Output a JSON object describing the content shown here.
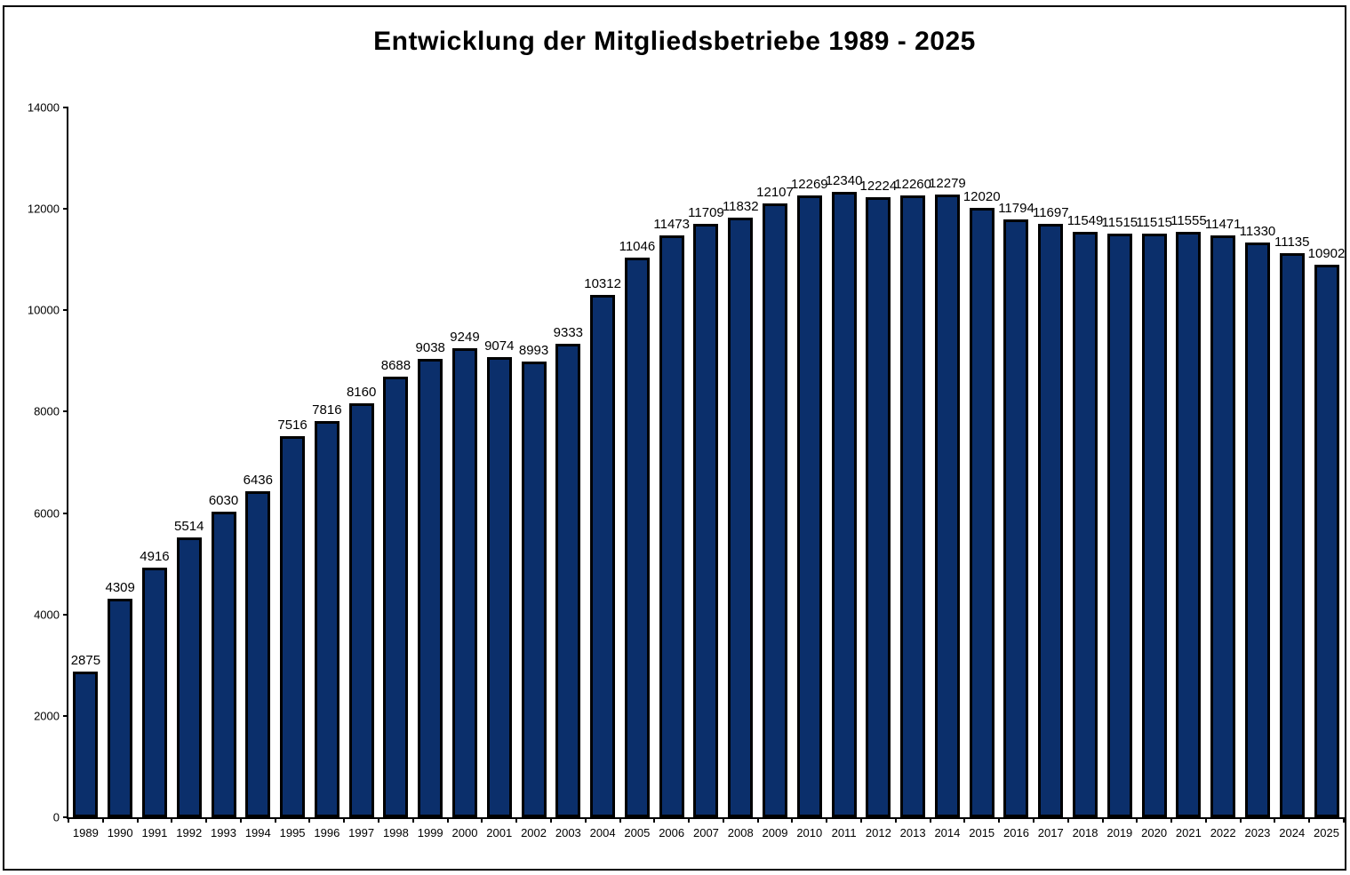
{
  "chart_data": {
    "type": "bar",
    "title": "Entwicklung der Mitgliedsbetriebe 1989 - 2025",
    "categories": [
      "1989",
      "1990",
      "1991",
      "1992",
      "1993",
      "1994",
      "1995",
      "1996",
      "1997",
      "1998",
      "1999",
      "2000",
      "2001",
      "2002",
      "2003",
      "2004",
      "2005",
      "2006",
      "2007",
      "2008",
      "2009",
      "2010",
      "2011",
      "2012",
      "2013",
      "2014",
      "2015",
      "2016",
      "2017",
      "2018",
      "2019",
      "2020",
      "2021",
      "2022",
      "2023",
      "2024",
      "2025"
    ],
    "values": [
      2875,
      4309,
      4916,
      5514,
      6030,
      6436,
      7516,
      7816,
      8160,
      8688,
      9038,
      9249,
      9074,
      8993,
      9333,
      10312,
      11046,
      11473,
      11709,
      11832,
      12107,
      12269,
      12340,
      12224,
      12260,
      12279,
      12020,
      11794,
      11697,
      11549,
      11515,
      11515,
      11555,
      11471,
      11330,
      11135,
      10902
    ],
    "xlabel": "",
    "ylabel": "",
    "ylim": [
      0,
      14000
    ],
    "yticks": [
      0,
      2000,
      4000,
      6000,
      8000,
      10000,
      12000,
      14000
    ],
    "grid": false,
    "legend": null,
    "data_labels": true,
    "bar_color": "#0B2F6B",
    "bar_border_color": "#000000",
    "axis_color": "#000000",
    "background_color": "#FFFFFF"
  }
}
